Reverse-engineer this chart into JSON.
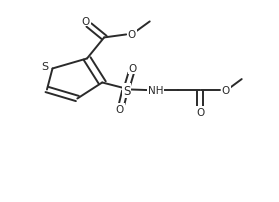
{
  "bg_color": "#ffffff",
  "line_color": "#2a2a2a",
  "line_width": 1.4,
  "figsize": [
    2.79,
    2.03
  ],
  "dpi": 100,
  "xlim": [
    0,
    10
  ],
  "ylim": [
    0,
    10
  ]
}
